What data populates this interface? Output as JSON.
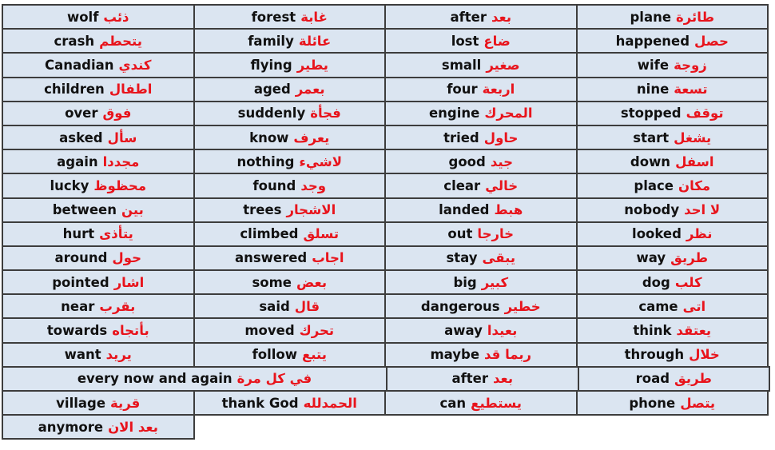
{
  "colors": {
    "english": "#111111",
    "arabic": "#e8141c",
    "cell_background": "#dbe5f1",
    "border": "#3d3d3d"
  },
  "rows": [
    [
      {
        "en": "wolf",
        "ar": "ذئب"
      },
      {
        "en": "forest",
        "ar": "غابة"
      },
      {
        "en": "after",
        "ar": "بعد"
      },
      {
        "en": "plane",
        "ar": "طائرة"
      }
    ],
    [
      {
        "en": "crash",
        "ar": "يتحطم"
      },
      {
        "en": "family",
        "ar": "عائلة"
      },
      {
        "en": "lost",
        "ar": "ضاع"
      },
      {
        "en": "happened",
        "ar": "حصل"
      }
    ],
    [
      {
        "en": "Canadian",
        "ar": "كندي"
      },
      {
        "en": "flying",
        "ar": "يطير"
      },
      {
        "en": "small",
        "ar": "صغير"
      },
      {
        "en": "wife",
        "ar": "زوجة"
      }
    ],
    [
      {
        "en": "children",
        "ar": "اطفال"
      },
      {
        "en": "aged",
        "ar": "بعمر"
      },
      {
        "en": "four",
        "ar": "اربعة"
      },
      {
        "en": "nine",
        "ar": "تسعة"
      }
    ],
    [
      {
        "en": "over",
        "ar": "فوق"
      },
      {
        "en": "suddenly",
        "ar": "فجأة"
      },
      {
        "en": "engine",
        "ar": "المحرك"
      },
      {
        "en": "stopped",
        "ar": "توقف"
      }
    ],
    [
      {
        "en": "asked",
        "ar": "سأل"
      },
      {
        "en": "know",
        "ar": "يعرف"
      },
      {
        "en": "tried",
        "ar": "حاول"
      },
      {
        "en": "start",
        "ar": "يشغل"
      }
    ],
    [
      {
        "en": "again",
        "ar": "مجددا"
      },
      {
        "en": "nothing",
        "ar": "لاشيء"
      },
      {
        "en": "good",
        "ar": "جيد"
      },
      {
        "en": "down",
        "ar": "اسفل"
      }
    ],
    [
      {
        "en": "lucky",
        "ar": "محظوظ"
      },
      {
        "en": "found",
        "ar": "وجد"
      },
      {
        "en": "clear",
        "ar": "خالي"
      },
      {
        "en": "place",
        "ar": "مكان"
      }
    ],
    [
      {
        "en": "between",
        "ar": "بين"
      },
      {
        "en": "trees",
        "ar": "الاشجار"
      },
      {
        "en": "landed",
        "ar": "هبط"
      },
      {
        "en": "nobody",
        "ar": "لا احد"
      }
    ],
    [
      {
        "en": "hurt",
        "ar": "يتأذى"
      },
      {
        "en": "climbed",
        "ar": "تسلق"
      },
      {
        "en": "out",
        "ar": "خارجا"
      },
      {
        "en": "looked",
        "ar": "نظر"
      }
    ],
    [
      {
        "en": "around",
        "ar": "حول"
      },
      {
        "en": "answered",
        "ar": "اجاب"
      },
      {
        "en": "stay",
        "ar": "يبقى"
      },
      {
        "en": "way",
        "ar": "طريق"
      }
    ],
    [
      {
        "en": "pointed",
        "ar": "اشار"
      },
      {
        "en": "some",
        "ar": "بعض"
      },
      {
        "en": "big",
        "ar": "كبير"
      },
      {
        "en": "dog",
        "ar": "كلب"
      }
    ],
    [
      {
        "en": "near",
        "ar": "بقرب"
      },
      {
        "en": "said",
        "ar": "قال"
      },
      {
        "en": "dangerous",
        "ar": "خطير"
      },
      {
        "en": "came",
        "ar": "اتى"
      }
    ],
    [
      {
        "en": "towards",
        "ar": "بأتجاه"
      },
      {
        "en": "moved",
        "ar": "تحرك"
      },
      {
        "en": "away",
        "ar": "بعيدا"
      },
      {
        "en": "think",
        "ar": "يعتقد"
      }
    ],
    [
      {
        "en": "want",
        "ar": "يريد"
      },
      {
        "en": "follow",
        "ar": "يتبع"
      },
      {
        "en": "maybe",
        "ar": "ربما قد"
      },
      {
        "en": "through",
        "ar": "خلال"
      }
    ],
    [
      {
        "en": "every now and again",
        "ar": "في كل مرة",
        "wide": true
      },
      {
        "en": "after",
        "ar": "بعد"
      },
      {
        "en": "road",
        "ar": "طريق"
      }
    ],
    [
      {
        "en": "village",
        "ar": "قرية"
      },
      {
        "en": "thank God",
        "ar": "الحمدلله"
      },
      {
        "en": "can",
        "ar": "يستطيع"
      },
      {
        "en": "phone",
        "ar": "يتصل"
      }
    ],
    [
      {
        "en": "anymore",
        "ar": "بعد الان"
      }
    ]
  ]
}
